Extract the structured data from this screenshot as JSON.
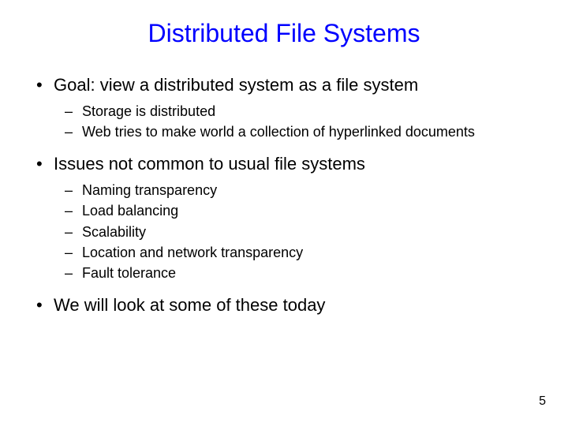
{
  "title": {
    "text": "Distributed File Systems",
    "color": "#0000ff",
    "fontsize": 32
  },
  "body": {
    "color": "#000000"
  },
  "bullets": [
    {
      "text": "Goal: view a distributed system as a file system",
      "sub": [
        "Storage is distributed",
        "Web tries to make world a collection of hyperlinked documents"
      ]
    },
    {
      "text": "Issues not common to usual file systems",
      "sub": [
        "Naming transparency",
        "Load balancing",
        "Scalability",
        "Location and network transparency",
        "Fault tolerance"
      ]
    },
    {
      "text": "We will look at some of these today",
      "sub": []
    }
  ],
  "page_number": "5",
  "background_color": "#ffffff"
}
